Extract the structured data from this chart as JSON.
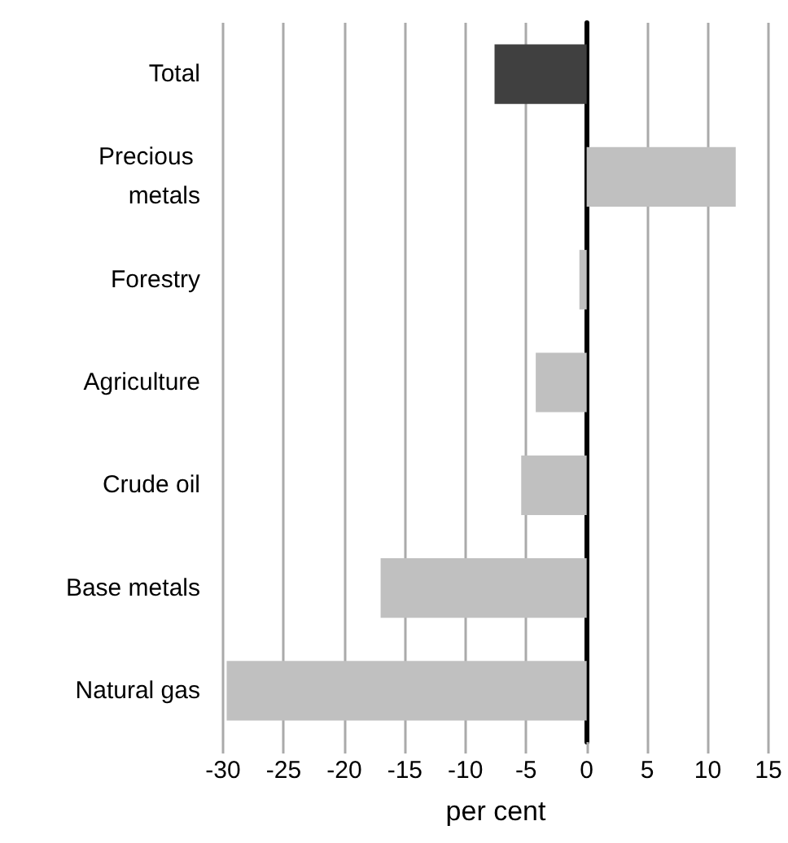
{
  "chart_data": {
    "type": "bar",
    "orientation": "horizontal",
    "categories": [
      "Total",
      "Precious metals",
      "Forestry",
      "Agriculture",
      "Crude oil",
      "Base metals",
      "Natural gas"
    ],
    "values": [
      -7.6,
      12.3,
      -0.6,
      -4.2,
      -5.4,
      -17.0,
      -29.7
    ],
    "colors": [
      "#404040",
      "#c0c0c0",
      "#c0c0c0",
      "#c0c0c0",
      "#c0c0c0",
      "#c0c0c0",
      "#c0c0c0"
    ],
    "xlabel": "per cent",
    "xlim": [
      -30,
      15
    ],
    "xticks": [
      -30,
      -25,
      -20,
      -15,
      -10,
      -5,
      0,
      5,
      10,
      15
    ],
    "grid": "x"
  }
}
